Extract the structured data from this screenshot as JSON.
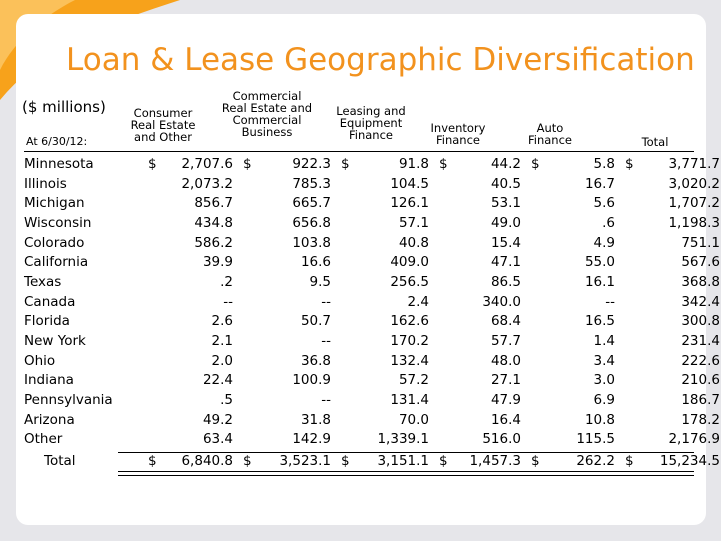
{
  "title": "Loan & Lease Geographic Diversification",
  "units": "($ millions)",
  "as_of": "At 6/30/12:",
  "columns": [
    "Consumer\nReal Estate\nand Other",
    "Commercial\nReal Estate and\nCommercial\nBusiness",
    "Leasing and\nEquipment\nFinance",
    "Inventory\nFinance",
    "Auto\nFinance",
    "Total"
  ],
  "rows": [
    {
      "state": "Minnesota",
      "dollar": true,
      "values": [
        "2,707.6",
        "922.3",
        "91.8",
        "44.2",
        "5.8",
        "3,771.7"
      ]
    },
    {
      "state": "Illinois",
      "values": [
        "2,073.2",
        "785.3",
        "104.5",
        "40.5",
        "16.7",
        "3,020.2"
      ]
    },
    {
      "state": "Michigan",
      "values": [
        "856.7",
        "665.7",
        "126.1",
        "53.1",
        "5.6",
        "1,707.2"
      ]
    },
    {
      "state": "Wisconsin",
      "values": [
        "434.8",
        "656.8",
        "57.1",
        "49.0",
        ".6",
        "1,198.3"
      ]
    },
    {
      "state": "Colorado",
      "values": [
        "586.2",
        "103.8",
        "40.8",
        "15.4",
        "4.9",
        "751.1"
      ]
    },
    {
      "state": "California",
      "values": [
        "39.9",
        "16.6",
        "409.0",
        "47.1",
        "55.0",
        "567.6"
      ]
    },
    {
      "state": "Texas",
      "values": [
        ".2",
        "9.5",
        "256.5",
        "86.5",
        "16.1",
        "368.8"
      ]
    },
    {
      "state": "Canada",
      "values": [
        "--",
        "--",
        "2.4",
        "340.0",
        "--",
        "342.4"
      ]
    },
    {
      "state": "Florida",
      "values": [
        "2.6",
        "50.7",
        "162.6",
        "68.4",
        "16.5",
        "300.8"
      ]
    },
    {
      "state": "New York",
      "values": [
        "2.1",
        "--",
        "170.2",
        "57.7",
        "1.4",
        "231.4"
      ]
    },
    {
      "state": "Ohio",
      "values": [
        "2.0",
        "36.8",
        "132.4",
        "48.0",
        "3.4",
        "222.6"
      ]
    },
    {
      "state": "Indiana",
      "values": [
        "22.4",
        "100.9",
        "57.2",
        "27.1",
        "3.0",
        "210.6"
      ]
    },
    {
      "state": "Pennsylvania",
      "values": [
        ".5",
        "--",
        "131.4",
        "47.9",
        "6.9",
        "186.7"
      ]
    },
    {
      "state": "Arizona",
      "values": [
        "49.2",
        "31.8",
        "70.0",
        "16.4",
        "10.8",
        "178.2"
      ]
    },
    {
      "state": "Other",
      "values": [
        "63.4",
        "142.9",
        "1,339.1",
        "516.0",
        "115.5",
        "2,176.9"
      ]
    }
  ],
  "total": {
    "label": "Total",
    "values": [
      "6,840.8",
      "3,523.1",
      "3,151.1",
      "1,457.3",
      "262.2",
      "15,234.5"
    ]
  },
  "currency_symbol": "$",
  "colors": {
    "accent": "#f2921e",
    "accent_light": "#fbc15a",
    "background": "#e6e6ea"
  }
}
